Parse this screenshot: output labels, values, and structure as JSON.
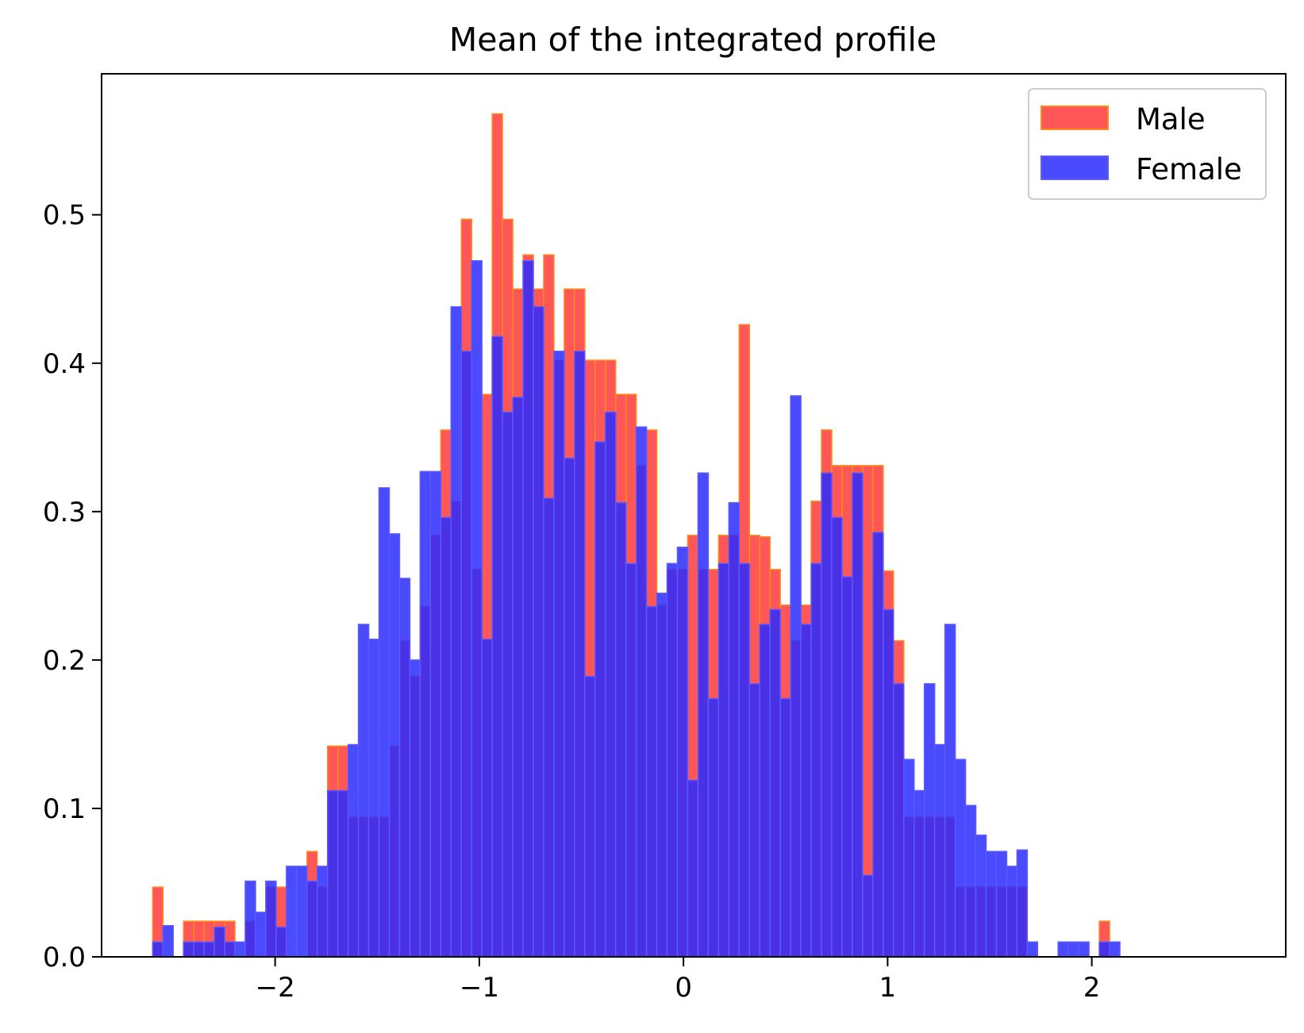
{
  "chart_data": {
    "type": "bar",
    "subtype": "overlaid-histogram",
    "title": "Mean of the integrated profile",
    "xlabel": "",
    "ylabel": "",
    "xlim": [
      -2.85,
      2.95
    ],
    "ylim": [
      0,
      0.595
    ],
    "xticks": [
      -2,
      -1,
      0,
      1,
      2
    ],
    "xtick_labels": [
      "−2",
      "−1",
      "0",
      "1",
      "2"
    ],
    "yticks": [
      0.0,
      0.1,
      0.2,
      0.3,
      0.4,
      0.5
    ],
    "ytick_labels": [
      "0.0",
      "0.1",
      "0.2",
      "0.3",
      "0.4",
      "0.5"
    ],
    "grid": false,
    "legend": {
      "position": "top-right",
      "entries": [
        "Male",
        "Female"
      ]
    },
    "bin_start": -2.6,
    "bin_width": 0.0504,
    "series": [
      {
        "name": "Male",
        "color": "#ff3a3a",
        "edge_color": "#ff8c1a",
        "values": [
          0.047,
          0,
          0,
          0.024,
          0.024,
          0.024,
          0.024,
          0.024,
          0,
          0.024,
          0,
          0.047,
          0.047,
          0,
          0,
          0.071,
          0.047,
          0.142,
          0.142,
          0.094,
          0.094,
          0.094,
          0.094,
          0.142,
          0.213,
          0.189,
          0.236,
          0.284,
          0.355,
          0.307,
          0.497,
          0.261,
          0.379,
          0.568,
          0.497,
          0.45,
          0.473,
          0.45,
          0.473,
          0.402,
          0.45,
          0.45,
          0.402,
          0.402,
          0.402,
          0.379,
          0.379,
          0.331,
          0.355,
          0.237,
          0.261,
          0.261,
          0.284,
          0.261,
          0.261,
          0.284,
          0.284,
          0.426,
          0.284,
          0.283,
          0.261,
          0.237,
          0.213,
          0.237,
          0.307,
          0.355,
          0.331,
          0.331,
          0.331,
          0.331,
          0.331,
          0.26,
          0.213,
          0.094,
          0.094,
          0.094,
          0.094,
          0.094,
          0.047,
          0.047,
          0.047,
          0.047,
          0.047,
          0.047,
          0.047,
          0,
          0,
          0,
          0,
          0,
          0,
          0,
          0.024
        ]
      },
      {
        "name": "Female",
        "color": "#2a2aff",
        "edge_color": "#5a5aff",
        "values": [
          0.01,
          0.021,
          0,
          0.01,
          0.01,
          0.01,
          0.02,
          0.01,
          0.01,
          0.051,
          0.03,
          0.051,
          0.02,
          0.061,
          0.061,
          0.051,
          0.061,
          0.112,
          0.112,
          0.143,
          0.224,
          0.214,
          0.316,
          0.285,
          0.255,
          0.2,
          0.327,
          0.327,
          0.296,
          0.438,
          0.408,
          0.469,
          0.214,
          0.418,
          0.367,
          0.377,
          0.469,
          0.438,
          0.309,
          0.408,
          0.336,
          0.408,
          0.189,
          0.347,
          0.367,
          0.306,
          0.265,
          0.357,
          0.236,
          0.245,
          0.265,
          0.276,
          0.119,
          0.326,
          0.174,
          0.265,
          0.306,
          0.265,
          0.184,
          0.224,
          0.234,
          0.174,
          0.378,
          0.224,
          0.265,
          0.326,
          0.296,
          0.256,
          0.326,
          0.055,
          0.286,
          0.234,
          0.184,
          0.133,
          0.112,
          0.184,
          0.143,
          0.224,
          0.133,
          0.102,
          0.082,
          0.071,
          0.071,
          0.061,
          0.072,
          0.01,
          0,
          0,
          0.01,
          0.01,
          0.01,
          0,
          0.01,
          0.01
        ]
      }
    ]
  }
}
